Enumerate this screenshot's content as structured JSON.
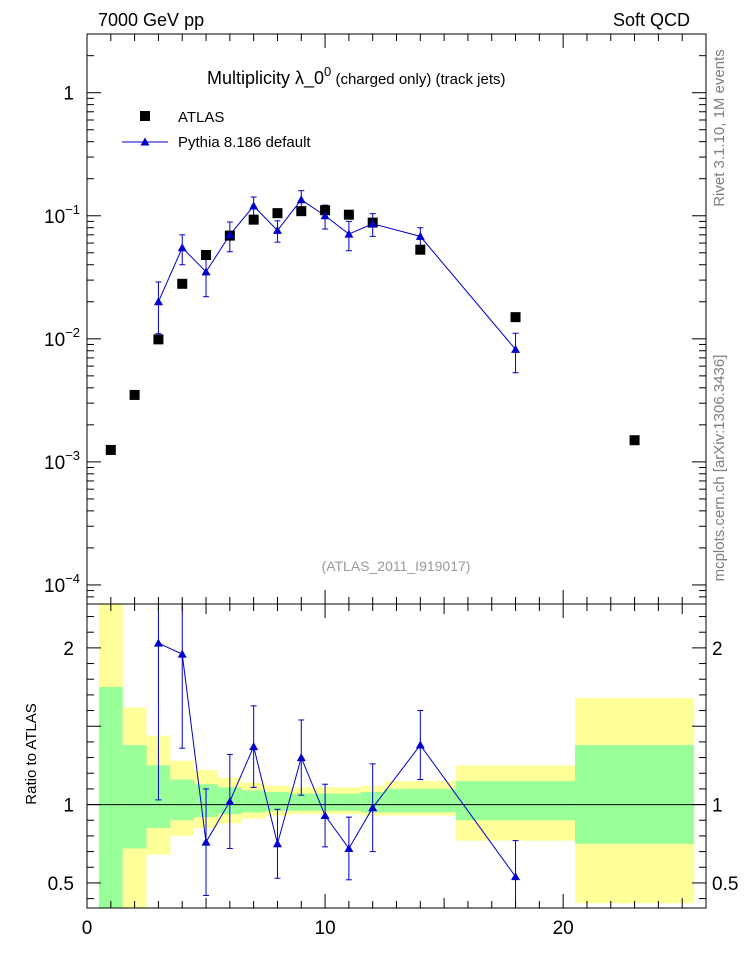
{
  "header": {
    "left": "7000 GeV pp",
    "right": "Soft QCD"
  },
  "title": {
    "main": "Multiplicity  λ_0",
    "superscript": "0",
    "suffix": " (charged only) (track jets)"
  },
  "watermark": "(ATLAS_2011_I919017)",
  "side_labels": {
    "rivet": "Rivet 3.1.10,  1M events",
    "mcplots": "mcplots.cern.ch [arXiv:1306.3436]"
  },
  "legend": {
    "atlas": "ATLAS",
    "pythia": "Pythia 8.186 default"
  },
  "colors": {
    "data": "#000000",
    "mc": "#0000cc",
    "band_inner": "#99ff99",
    "band_outer": "#ffff99"
  },
  "chart_data": [
    {
      "type": "scatter",
      "panel": "main",
      "yscale": "log",
      "xlim": [
        0,
        26
      ],
      "ylim": [
        7e-05,
        3
      ],
      "yticks": [
        {
          "value": 1,
          "base": "1",
          "exp": ""
        },
        {
          "value": 0.1,
          "base": "10",
          "exp": "−1"
        },
        {
          "value": 0.01,
          "base": "10",
          "exp": "−2"
        },
        {
          "value": 0.001,
          "base": "10",
          "exp": "−3"
        },
        {
          "value": 0.0001,
          "base": "10",
          "exp": "−4"
        }
      ],
      "series": [
        {
          "name": "ATLAS",
          "x": [
            1,
            2,
            3,
            4,
            5,
            6,
            7,
            8,
            9,
            10,
            11,
            12,
            14,
            18,
            23
          ],
          "y": [
            0.00125,
            0.0035,
            0.0099,
            0.028,
            0.048,
            0.069,
            0.093,
            0.105,
            0.109,
            0.111,
            0.102,
            0.088,
            0.053,
            0.015,
            0.0015
          ]
        },
        {
          "name": "Pythia 8.186 default",
          "x": [
            3,
            4,
            5,
            6,
            7,
            8,
            9,
            10,
            11,
            12,
            14,
            18
          ],
          "y": [
            0.02,
            0.055,
            0.035,
            0.07,
            0.12,
            0.076,
            0.135,
            0.1,
            0.071,
            0.086,
            0.068,
            0.0082
          ],
          "yerr": [
            0.009,
            0.015,
            0.013,
            0.019,
            0.022,
            0.015,
            0.025,
            0.022,
            0.019,
            0.018,
            0.012,
            0.0029
          ]
        }
      ]
    },
    {
      "type": "line",
      "panel": "ratio",
      "ylabel": "Ratio to ATLAS",
      "xlim": [
        0,
        26
      ],
      "ylim": [
        0.34,
        2.28
      ],
      "yticks": [
        0.5,
        1,
        2
      ],
      "xticks": [
        0,
        10,
        20
      ],
      "bands": {
        "edges": [
          0.5,
          1.5,
          2.5,
          3.5,
          4.5,
          5.5,
          6.5,
          7.5,
          8.5,
          9.5,
          10.5,
          11.5,
          12.5,
          15.5,
          20.5,
          25.5
        ],
        "inner_hi": [
          1.75,
          1.38,
          1.25,
          1.16,
          1.13,
          1.11,
          1.09,
          1.08,
          1.07,
          1.07,
          1.07,
          1.08,
          1.1,
          1.15,
          1.38
        ],
        "inner_lo": [
          0.3,
          0.72,
          0.85,
          0.9,
          0.92,
          0.94,
          0.95,
          0.96,
          0.96,
          0.96,
          0.96,
          0.95,
          0.95,
          0.9,
          0.75
        ],
        "outer_hi": [
          2.28,
          1.62,
          1.44,
          1.28,
          1.22,
          1.17,
          1.14,
          1.12,
          1.11,
          1.11,
          1.11,
          1.12,
          1.15,
          1.25,
          1.68
        ],
        "outer_lo": [
          0.3,
          0.3,
          0.68,
          0.8,
          0.85,
          0.88,
          0.91,
          0.93,
          0.94,
          0.94,
          0.94,
          0.93,
          0.93,
          0.77,
          0.37
        ]
      },
      "series": [
        {
          "name": "Pythia 8.186 default",
          "x": [
            3,
            4,
            5,
            6,
            7,
            8,
            9,
            10,
            11,
            12,
            14,
            18
          ],
          "y": [
            2.03,
            1.96,
            0.76,
            1.02,
            1.37,
            0.75,
            1.3,
            0.93,
            0.72,
            0.98,
            1.38,
            0.54
          ],
          "yerr": [
            1.0,
            0.6,
            0.34,
            0.3,
            0.26,
            0.22,
            0.24,
            0.2,
            0.2,
            0.28,
            0.22,
            0.23
          ]
        }
      ]
    }
  ]
}
